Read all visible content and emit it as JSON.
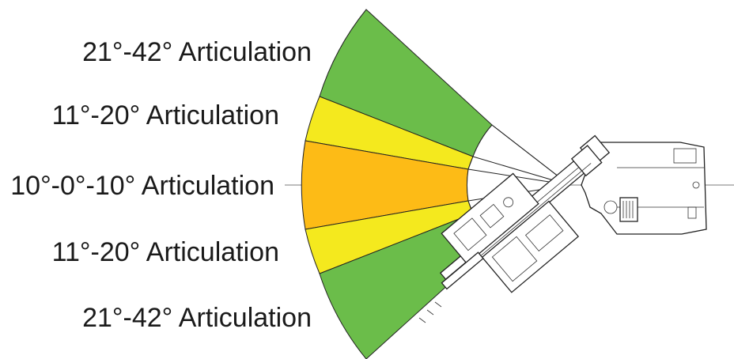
{
  "labels": {
    "top_outer": "21°-42° Articulation",
    "top_middle": "11°-20° Articulation",
    "center": "10°-0°-10° Articulation",
    "bottom_middle": "11°-20° Articulation",
    "bottom_outer": "21°-42° Articulation"
  },
  "colors": {
    "outer_zone": "#6bbd4a",
    "middle_zone": "#f4e91e",
    "center_zone": "#fdbb16",
    "inner_fan": "#ffffff",
    "centerline": "#bdbdbd",
    "outline": "#222222"
  },
  "icons": {
    "machine": "telehandler-topdown-outline"
  }
}
